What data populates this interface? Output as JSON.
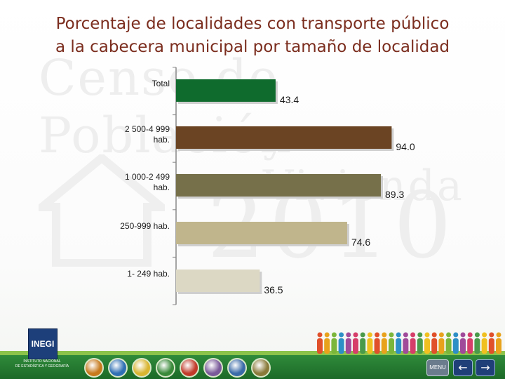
{
  "title_line1": "Porcentaje de localidades con transporte público",
  "title_line2": "a la cabecera municipal por tamaño de localidad",
  "watermark": {
    "line1": "Censo de Población",
    "line2": "y Vivienda",
    "line3": "2010"
  },
  "logo": {
    "name": "INEGI",
    "subtitle1": "INSTITUTO NACIONAL",
    "subtitle2": "DE ESTADÍSTICA Y GEOGRAFÍA"
  },
  "footer": {
    "menu_label": "MENU",
    "prev_symbol": "←",
    "next_symbol": "→",
    "icon_colors": [
      "#c77a1d",
      "#2f6fb3",
      "#d9b531",
      "#3a8a3a",
      "#c13a2a",
      "#7a5a9a",
      "#3a6aa8",
      "#8a7a3a"
    ]
  },
  "chart_data": {
    "type": "bar",
    "orientation": "horizontal",
    "categories": [
      [
        "Total"
      ],
      [
        "2 500-4 999",
        "hab."
      ],
      [
        "1 000-2 499",
        "hab."
      ],
      [
        "250-999  hab."
      ],
      [
        "1- 249 hab."
      ]
    ],
    "values": [
      43.4,
      94.0,
      89.3,
      74.6,
      36.5
    ],
    "value_labels": [
      "43.4",
      "94.0",
      "89.3",
      "74.6",
      "36.5"
    ],
    "colors": [
      "#0f6b2d",
      "#6b4423",
      "#76704a",
      "#c0b58c",
      "#dcd8c4"
    ],
    "xlim": [
      0,
      100
    ],
    "grid": false,
    "legend": "none"
  }
}
